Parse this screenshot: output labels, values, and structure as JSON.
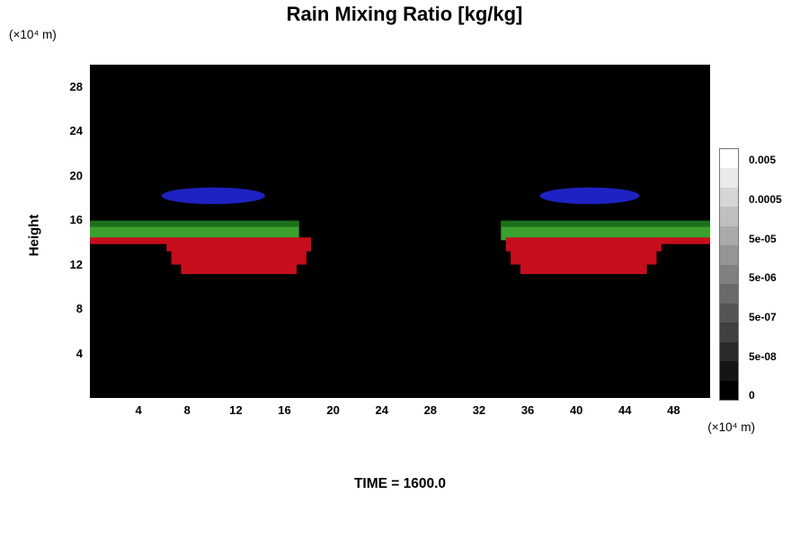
{
  "chart_data": {
    "type": "heatmap",
    "title": "Rain Mixing Ratio [kg/kg]",
    "ylabel": "Height",
    "ylabel_unit": "(×10⁴ m)",
    "xlabel_unit": "(×10⁴ m)",
    "time": "TIME = 1600.0",
    "x_range": [
      0,
      51
    ],
    "y_range": [
      0,
      30
    ],
    "x_ticks": [
      4,
      8,
      12,
      16,
      20,
      24,
      28,
      32,
      36,
      40,
      44,
      48
    ],
    "y_ticks": [
      4,
      8,
      12,
      16,
      20,
      24,
      28
    ],
    "background": "#000000",
    "grid": false,
    "legend_position": "right-colorbar",
    "colors": {
      "blue": "#1f22c2",
      "green": "#3aa12e",
      "green_dark": "#1d701b",
      "red": "#c60e1d"
    },
    "colorbar": {
      "labels": [
        "0.005",
        "0.0005",
        "5e-05",
        "5e-06",
        "5e-07",
        "5e-08",
        "0"
      ],
      "segments": 13,
      "top_color": "#ffffff",
      "bottom_color": "#000000"
    },
    "features": [
      {
        "shape": "ellipse",
        "color": "blue",
        "cx": 10.15,
        "cy": 18.2,
        "rx": 4.25,
        "ry": 0.75
      },
      {
        "shape": "ellipse",
        "color": "blue",
        "cx": 41.1,
        "cy": 18.2,
        "rx": 4.1,
        "ry": 0.75
      },
      {
        "shape": "green_band",
        "color": "green",
        "x1": 0,
        "x2": 17.2,
        "y1": 14.2,
        "y2": 15.95
      },
      {
        "shape": "green_band",
        "color": "green",
        "x1": 33.8,
        "x2": 51,
        "y1": 14.2,
        "y2": 15.95
      },
      {
        "shape": "red_strip",
        "color": "red",
        "x1": 0,
        "x2": 6.8,
        "y1": 13.85,
        "y2": 14.45
      },
      {
        "shape": "red_strip",
        "color": "red",
        "x1": 46.6,
        "x2": 51,
        "y1": 13.85,
        "y2": 14.45
      },
      {
        "shape": "red_blob",
        "color": "red",
        "x1": 6.3,
        "x2": 18.2,
        "y1": 11.15,
        "y2": 14.45
      },
      {
        "shape": "red_blob",
        "color": "red",
        "x1": 34.2,
        "x2": 47.0,
        "y1": 11.15,
        "y2": 14.45
      }
    ]
  }
}
